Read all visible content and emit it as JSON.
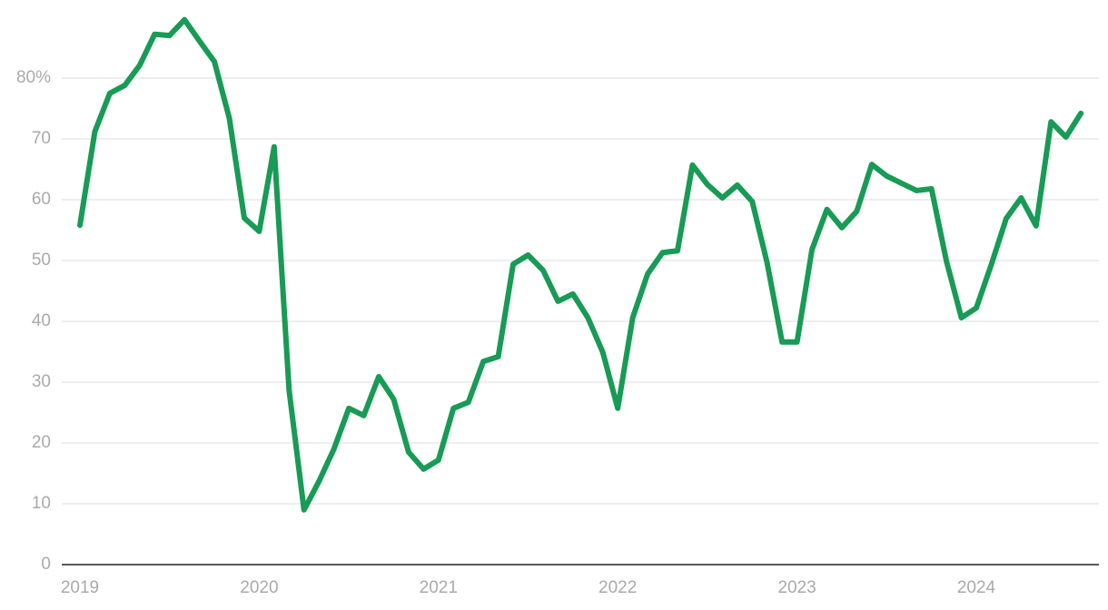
{
  "chart_data": {
    "type": "line",
    "categories": [
      "2019",
      null,
      null,
      null,
      null,
      null,
      null,
      null,
      null,
      null,
      null,
      null,
      "2020",
      null,
      null,
      null,
      null,
      null,
      null,
      null,
      null,
      null,
      null,
      null,
      "2021",
      null,
      null,
      null,
      null,
      null,
      null,
      null,
      null,
      null,
      null,
      null,
      "2022",
      null,
      null,
      null,
      null,
      null,
      null,
      null,
      null,
      null,
      null,
      null,
      "2023",
      null,
      null,
      null,
      null,
      null,
      null,
      null,
      null,
      null,
      null,
      null,
      "2024",
      null,
      null,
      null,
      null,
      null,
      null,
      null
    ],
    "values": [
      55.8,
      71.2,
      77.5,
      78.8,
      82.1,
      87.2,
      87.0,
      89.6,
      86.1,
      82.7,
      73.4,
      57.0,
      54.8,
      68.7,
      28.7,
      9.0,
      13.7,
      19.0,
      25.7,
      24.5,
      30.9,
      27.2,
      18.5,
      15.7,
      17.2,
      25.7,
      26.7,
      33.4,
      34.2,
      49.4,
      50.9,
      48.4,
      43.3,
      44.5,
      40.6,
      34.9,
      25.7,
      40.6,
      47.8,
      51.3,
      51.6,
      65.7,
      62.5,
      60.3,
      62.4,
      59.7,
      49.6,
      36.6,
      36.6,
      51.8,
      58.4,
      55.4,
      58.1,
      65.8,
      63.9,
      62.7,
      61.5,
      61.8,
      49.9,
      40.6,
      42.2,
      49.3,
      56.9,
      60.3,
      55.7,
      72.8,
      70.3,
      74.2
    ],
    "color": "#179b55",
    "ylim": [
      0,
      90
    ],
    "yticks": [
      0,
      10,
      20,
      30,
      40,
      50,
      60,
      70,
      {
        "value": 80,
        "label": "80%"
      }
    ],
    "grid": true
  }
}
